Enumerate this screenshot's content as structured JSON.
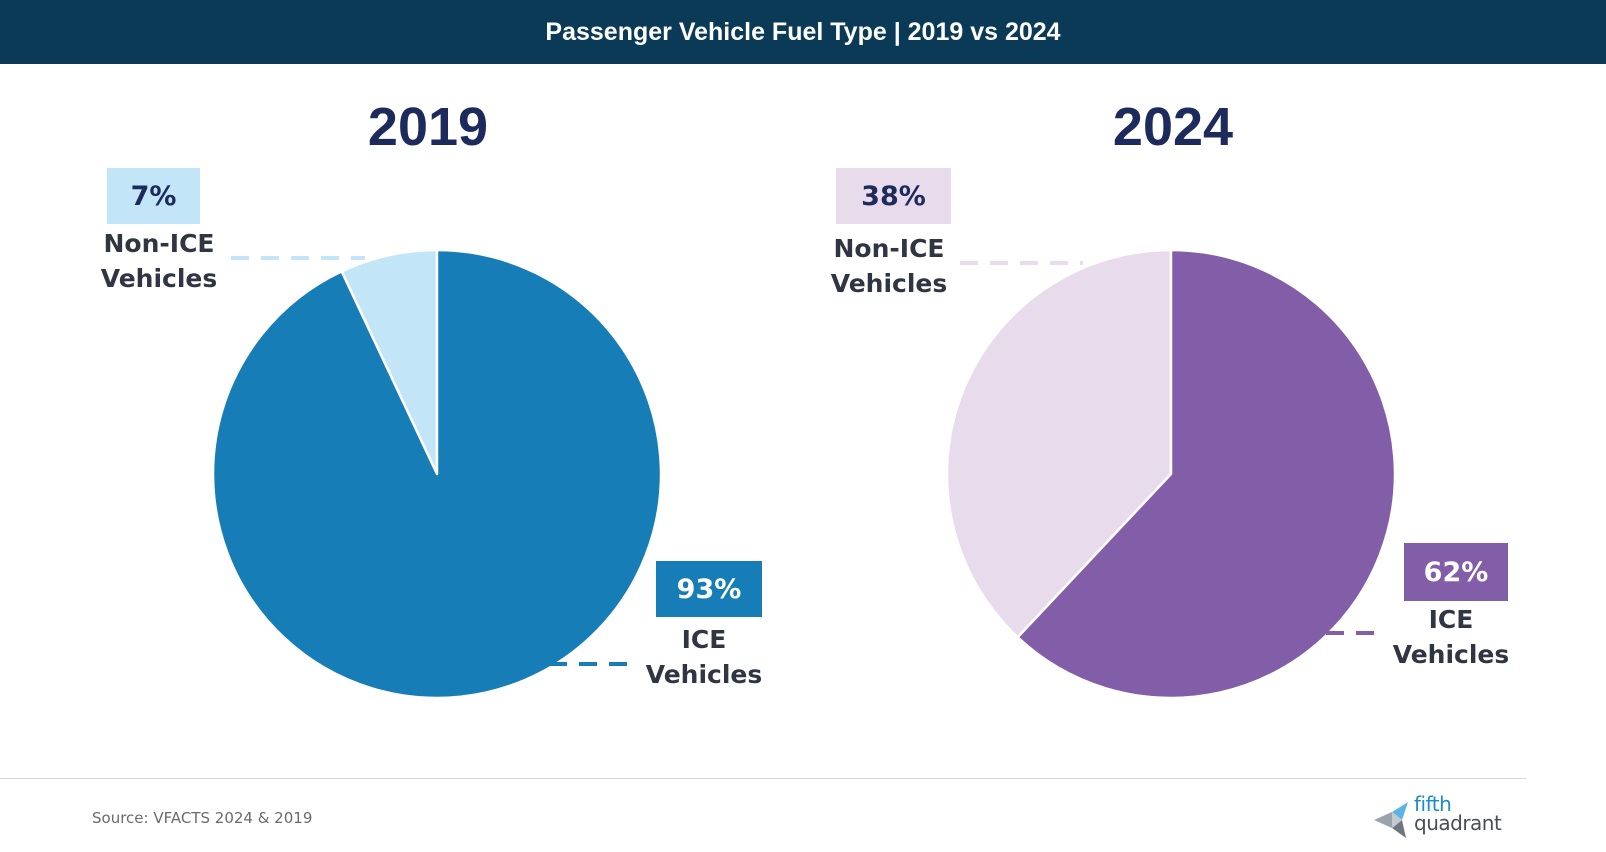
{
  "header": {
    "title": "Passenger Vehicle Fuel Type | 2019 vs 2024"
  },
  "colors": {
    "header_bg": "#0b3a57",
    "title_text": "#1d2a5c",
    "label_text": "#2f3642",
    "ice_2019": "#177db6",
    "non_ice_2019": "#c2e5f7",
    "ice_2024": "#825ea8",
    "non_ice_2024": "#e8dcec"
  },
  "chart_data": [
    {
      "type": "pie",
      "title": "2019",
      "categories": [
        "Non-ICE Vehicles",
        "ICE Vehicles"
      ],
      "values": [
        7,
        93
      ],
      "value_labels": [
        "7%",
        "93%"
      ],
      "slice_colors": [
        "#c2e5f7",
        "#177db6"
      ],
      "badge_text_colors": [
        "#1d2a5c",
        "#ffffff"
      ],
      "label_lines": [
        [
          "Non-ICE",
          "Vehicles"
        ],
        [
          "ICE",
          "Vehicles"
        ]
      ]
    },
    {
      "type": "pie",
      "title": "2024",
      "categories": [
        "Non-ICE Vehicles",
        "ICE Vehicles"
      ],
      "values": [
        38,
        62
      ],
      "value_labels": [
        "38%",
        "62%"
      ],
      "slice_colors": [
        "#e8dcec",
        "#825ea8"
      ],
      "badge_text_colors": [
        "#1d2a5c",
        "#ffffff"
      ],
      "label_lines": [
        [
          "Non-ICE",
          "Vehicles"
        ],
        [
          "ICE",
          "Vehicles"
        ]
      ]
    }
  ],
  "footer": {
    "source": "Source: VFACTS 2024 & 2019",
    "logo_line1": "fifth",
    "logo_line2": "quadrant"
  }
}
